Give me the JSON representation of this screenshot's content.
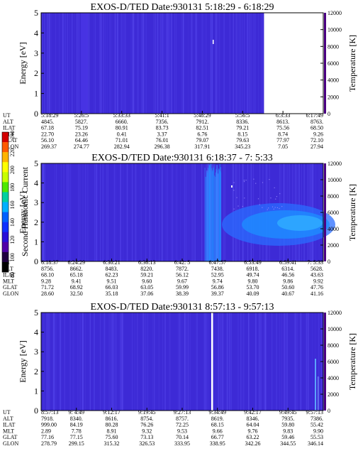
{
  "figure": {
    "colorbar": {
      "label": "Second Harmonic Current",
      "ticks": [
        "240",
        "220",
        "200",
        "180",
        "160",
        "140",
        "120",
        "100",
        "80"
      ],
      "colors": [
        "#d40000",
        "#ff5a00",
        "#ffb400",
        "#ffff00",
        "#c8ff00",
        "#4ee800",
        "#00d0a0",
        "#00b0ff",
        "#0060ff",
        "#1030ff",
        "#2a10d8",
        "#5000a8",
        "#200040",
        "#000000"
      ]
    },
    "colors": {
      "background": "#3d2ad6",
      "streak": "#5a4cf0",
      "hot": "#1e8cff",
      "warm": "#2a6cff"
    }
  },
  "chart_data": [
    {
      "type": "heatmap",
      "title": "EXOS-D/TED   Date:930131   5:18:29 - 6:18:29",
      "ylabel": "Energy [eV]",
      "y2label": "Temperature [K]",
      "ylim": [
        0,
        5
      ],
      "y2lim": [
        0,
        12000
      ],
      "yticks": [
        "0",
        "1",
        "2",
        "3",
        "4",
        "5"
      ],
      "y2ticks": [
        "0",
        "2000",
        "4000",
        "6000",
        "8000",
        "10000",
        "12000"
      ],
      "data_end_fraction": 0.79,
      "x_rows": [
        {
          "name": "UT",
          "values": [
            "5:18:29",
            "5:26:5",
            "5:33:33",
            "5:41:1",
            "5:48:29",
            "5:56:5",
            "6:3:33",
            "6:17:49"
          ]
        },
        {
          "name": "ALT",
          "values": [
            "4845.",
            "5827.",
            "6660.",
            "7356.",
            "7912.",
            "8336.",
            "8613.",
            "8763."
          ]
        },
        {
          "name": "ILAT",
          "values": [
            "67.18",
            "75.19",
            "80.91",
            "83.73",
            "82.51",
            "79.21",
            "75.56",
            "68.50"
          ]
        },
        {
          "name": "MLT",
          "values": [
            "22.70",
            "23.26",
            "0.41",
            "3.37",
            "6.76",
            "8.15",
            "8.74",
            "9.26"
          ]
        },
        {
          "name": "GLAT",
          "values": [
            "56.10",
            "64.46",
            "71.01",
            "76.01",
            "79.07",
            "79.63",
            "77.97",
            "72.10"
          ]
        },
        {
          "name": "GLON",
          "values": [
            "269.37",
            "274.77",
            "282.94",
            "296.38",
            "317.91",
            "345.23",
            "7.05",
            "27.94"
          ]
        }
      ]
    },
    {
      "type": "heatmap",
      "title": "EXOS-D/TED   Date:930131   6:18:37 - 7: 5:33",
      "ylabel": "Energy [eV]",
      "y2label": "Temperature [K]",
      "ylim": [
        0,
        5
      ],
      "y2lim": [
        0,
        12000
      ],
      "yticks": [
        "0",
        "1",
        "2",
        "3",
        "4",
        "5"
      ],
      "y2ticks": [
        "0",
        "2000",
        "4000",
        "6000",
        "8000",
        "10000",
        "12000"
      ],
      "x_rows": [
        {
          "name": "UT",
          "values": [
            "6:18:37",
            "6:24:29",
            "6:30:21",
            "6:36:13",
            "6:42: 5",
            "6:47:57",
            "6:53:49",
            "6:59:41",
            "7: 5:33"
          ]
        },
        {
          "name": "ALT",
          "values": [
            "8756.",
            "8662.",
            "8483.",
            "8220.",
            "7872.",
            "7438.",
            "6918.",
            "6314.",
            "5628."
          ]
        },
        {
          "name": "ILAT",
          "values": [
            "68.10",
            "65.18",
            "62.23",
            "59.21",
            "56.12",
            "52.95",
            "49.74",
            "46.56",
            "43.63"
          ]
        },
        {
          "name": "MLT",
          "values": [
            "9.28",
            "9.41",
            "9.51",
            "9.60",
            "9.67",
            "9.74",
            "9.80",
            "9.86",
            "9.92"
          ]
        },
        {
          "name": "GLAT",
          "values": [
            "71.72",
            "68.92",
            "66.03",
            "63.05",
            "59.99",
            "56.86",
            "53.70",
            "50.60",
            "47.76"
          ]
        },
        {
          "name": "GLON",
          "values": [
            "28.60",
            "32.50",
            "35.18",
            "37.06",
            "38.39",
            "39.37",
            "40.09",
            "40.67",
            "41.16"
          ]
        }
      ]
    },
    {
      "type": "heatmap",
      "title": "EXOS-D/TED   Date:930131   8:57:13 - 9:57:13",
      "ylabel": "Energy [eV]",
      "y2label": "Temperature [K]",
      "ylim": [
        0,
        5
      ],
      "y2lim": [
        0,
        12000
      ],
      "yticks": [
        "0",
        "1",
        "2",
        "3",
        "4",
        "5"
      ],
      "y2ticks": [
        "0",
        "2000",
        "4000",
        "6000",
        "8000",
        "10000",
        "12000"
      ],
      "x_rows": [
        {
          "name": "UT",
          "values": [
            "8:57:13",
            "9: 4:49",
            "9:12:17",
            "9:19:45",
            "9:27:13",
            "9:34:49",
            "9:42:17",
            "9:49:45",
            "9:57:13"
          ]
        },
        {
          "name": "ALT",
          "values": [
            "7918.",
            "8340.",
            "8616.",
            "8754.",
            "8757.",
            "8619.",
            "8346.",
            "7935.",
            "7386."
          ]
        },
        {
          "name": "ILAT",
          "values": [
            "999.00",
            "84.19",
            "80.28",
            "76.26",
            "72.25",
            "68.15",
            "64.04",
            "59.80",
            "55.42"
          ]
        },
        {
          "name": "MLT",
          "values": [
            "2.89",
            "7.78",
            "8.91",
            "9.32",
            "9.53",
            "9.66",
            "9.76",
            "9.83",
            "9.90"
          ]
        },
        {
          "name": "GLAT",
          "values": [
            "77.16",
            "77.15",
            "75.60",
            "73.13",
            "70.14",
            "66.77",
            "63.22",
            "59.46",
            "55.53"
          ]
        },
        {
          "name": "GLON",
          "values": [
            "278.79",
            "299.15",
            "315.32",
            "326.53",
            "333.95",
            "338.95",
            "342.26",
            "344.55",
            "346.14"
          ]
        }
      ]
    }
  ]
}
